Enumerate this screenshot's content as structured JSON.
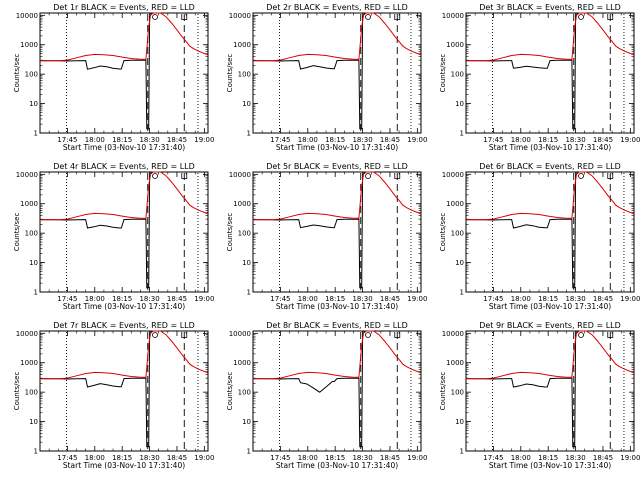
{
  "chart_data": {
    "type": "line",
    "layout": "3x3 grid",
    "panels": [
      {
        "title": "Det 1r BLACK = Events, RED = LLD",
        "black_dip": [
          148,
          165,
          190,
          178,
          160,
          150
        ]
      },
      {
        "title": "Det 2r BLACK = Events, RED = LLD",
        "black_dip": [
          150,
          168,
          195,
          180,
          162,
          152
        ]
      },
      {
        "title": "Det 3r BLACK = Events, RED = LLD",
        "black_dip": [
          160,
          170,
          185,
          175,
          165,
          158
        ]
      },
      {
        "title": "Det 4r BLACK = Events, RED = LLD",
        "black_dip": [
          150,
          165,
          185,
          175,
          160,
          150
        ]
      },
      {
        "title": "Det 5r BLACK = Events, RED = LLD",
        "black_dip": [
          155,
          170,
          190,
          178,
          163,
          155
        ]
      },
      {
        "title": "Det 6r BLACK = Events, RED = LLD",
        "black_dip": [
          150,
          168,
          192,
          180,
          160,
          152
        ]
      },
      {
        "title": "Det 7r BLACK = Events, RED = LLD",
        "black_dip": [
          150,
          170,
          195,
          180,
          162,
          153
        ]
      },
      {
        "title": "Det 8r BLACK = Events, RED = LLD",
        "black_dip": [
          210,
          190,
          140,
          100,
          150,
          230
        ]
      },
      {
        "title": "Det 9r BLACK = Events, RED = LLD",
        "black_dip": [
          150,
          165,
          190,
          178,
          160,
          150
        ]
      }
    ],
    "xlabel": "Start Time (03-Nov-10 17:31:40)",
    "ylabel": "Counts/sec",
    "x_ticks": [
      "17:45",
      "18:00",
      "18:15",
      "18:30",
      "18:45",
      "19:00"
    ],
    "y_ticks": [
      "1",
      "10",
      "100",
      "1000",
      "10000"
    ],
    "y_scale": "log",
    "ylim": [
      1,
      12000
    ],
    "x_range_minutes_after_1730": [
      0,
      92
    ],
    "series": [
      {
        "name": "Events",
        "color": "#000000",
        "x_min": [
          0,
          10,
          15,
          20,
          25,
          28,
          38,
          44,
          46,
          50,
          55,
          58,
          58.5,
          59.5,
          60,
          61,
          63
        ],
        "y": [
          290,
          285,
          280,
          285,
          290,
          250,
          250,
          255,
          290,
          295,
          295,
          300,
          1.4,
          1.4,
          9000,
          12000,
          12000
        ]
      },
      {
        "name": "LLD",
        "color": "#dd0000",
        "x_min": [
          0,
          10,
          15,
          20,
          25,
          30,
          35,
          40,
          45,
          50,
          55,
          58,
          59.5,
          60.5,
          62,
          66,
          69,
          72,
          75,
          78,
          80,
          82,
          84,
          87,
          92
        ],
        "y": [
          285,
          285,
          300,
          360,
          430,
          470,
          460,
          430,
          380,
          340,
          320,
          320,
          4000,
          10000,
          12000,
          12000,
          9000,
          5500,
          3200,
          1800,
          1300,
          900,
          740,
          600,
          450
        ]
      }
    ],
    "vertical_lines": [
      {
        "x_min": 14.5,
        "style": "dotted"
      },
      {
        "x_min": 59,
        "style": "dashed"
      },
      {
        "x_min": 79,
        "style": "dashed"
      },
      {
        "x_min": 86.5,
        "style": "dotted"
      }
    ],
    "markers": [
      {
        "x_min": 63,
        "symbol": "circle"
      },
      {
        "x_min": 79,
        "symbol": "open-box"
      }
    ],
    "grid": false,
    "legend": "in title"
  }
}
